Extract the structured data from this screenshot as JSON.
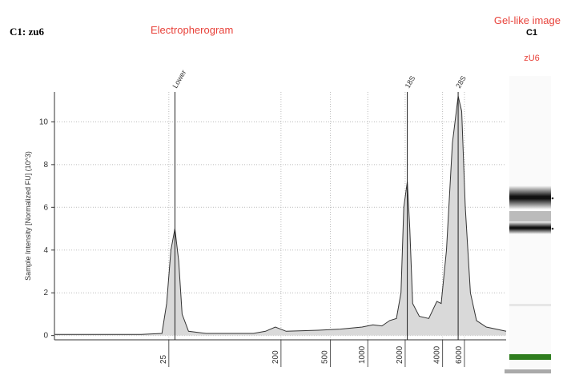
{
  "header": {
    "sample": "C1: zu6",
    "section": "Electropherogram"
  },
  "gel": {
    "title": "Gel-like image",
    "lane": "C1",
    "sample": "zU6"
  },
  "chart_data": {
    "type": "line",
    "ylabel": "Sample Intensity [Normalized FU] (10^3)",
    "xscale": "log",
    "xlim": [
      3,
      13000
    ],
    "ylim": [
      -0.2,
      11.4
    ],
    "xticks": [
      25,
      200,
      500,
      1000,
      2000,
      4000,
      6000
    ],
    "yticks": [
      0,
      2,
      4,
      6,
      8,
      10
    ],
    "grid": true,
    "color": "#333333",
    "fill": "#d9d9d9",
    "x": [
      3,
      15,
      22,
      24,
      26,
      28,
      30,
      32,
      36,
      50,
      120,
      150,
      180,
      220,
      400,
      600,
      900,
      1100,
      1300,
      1500,
      1700,
      1850,
      1950,
      2080,
      2180,
      2300,
      2600,
      3100,
      3600,
      3900,
      4300,
      4800,
      5340,
      5700,
      6100,
      6700,
      7500,
      9000,
      13000
    ],
    "values": [
      0.05,
      0.05,
      0.1,
      1.5,
      4.0,
      5.0,
      3.5,
      1.0,
      0.2,
      0.1,
      0.1,
      0.2,
      0.4,
      0.2,
      0.25,
      0.3,
      0.4,
      0.5,
      0.45,
      0.7,
      0.8,
      2.0,
      6.0,
      7.2,
      5.0,
      1.5,
      0.9,
      0.8,
      1.6,
      1.5,
      4.0,
      9.0,
      11.2,
      10.5,
      6.0,
      2.0,
      0.7,
      0.4,
      0.2
    ],
    "annotations": [
      {
        "text": "Lower",
        "x": 28
      },
      {
        "text": "18S",
        "x": 2080
      },
      {
        "text": "28S",
        "x": 5340
      }
    ]
  }
}
